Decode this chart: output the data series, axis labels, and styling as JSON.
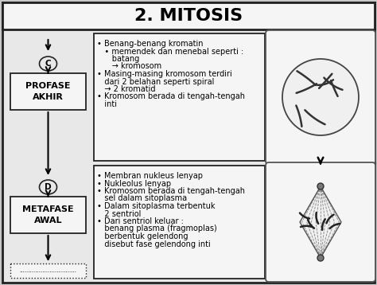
{
  "title": "2. MITOSIS",
  "title_fontsize": 16,
  "title_fontweight": "bold",
  "bg_color": "#c8c8c8",
  "inner_bg": "#e8e8e8",
  "white": "#f5f5f5",
  "box_edge": "#222222",
  "section1_label": "PROFASE\nAKHIR",
  "section2_label_actual": "METAFASE\nAWAL",
  "circle1_label": "C",
  "circle2_label": "D",
  "text1_line1": "• Benang-benang kromatin",
  "text1_line2": "   • memendek dan menebal seperti :",
  "text1_line3": "      batang",
  "text1_line4": "      → kromosom",
  "text1_line5": "• Masing-masing kromosom terdiri",
  "text1_line6": "   dari 2 belahan seperti spiral",
  "text1_line7": "   → 2 kromatid",
  "text1_line8": "• Kromosom berada di tengah-tengah",
  "text1_line9": "   inti",
  "text2_line1": "• Membran nukleus lenyap",
  "text2_line2": "• Nukleolus lenyap",
  "text2_line3": "• Kromosom berada di tengah-tengah",
  "text2_line4": "   sel dalam sitoplasma",
  "text2_line5": "• Dalam sitoplasma terbentuk",
  "text2_line6": "   2 sentriol",
  "text2_line7": "• Dari sentriol keluar :",
  "text2_line8": "   benang plasma (fragmoplas)",
  "text2_line9": "   berbentuk gelendong",
  "text2_line10": "   disebut fase gelendong inti",
  "font_size_text": 7.0,
  "font_size_box_label": 8.0,
  "font_size_circle": 7.5
}
